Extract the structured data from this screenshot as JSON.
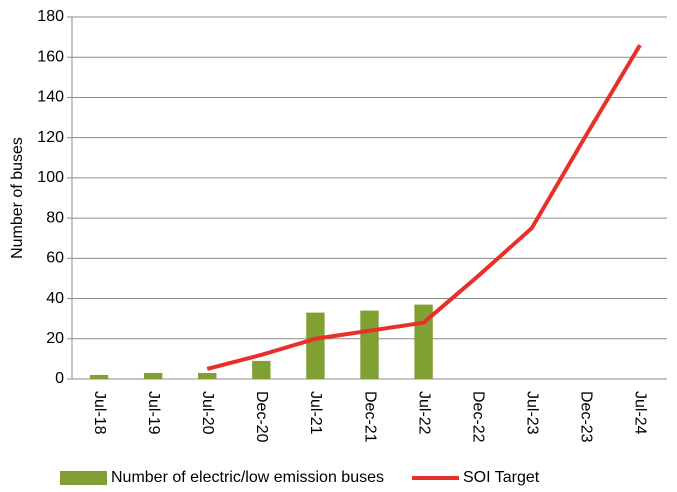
{
  "chart_data": {
    "type": "combo",
    "y_label": "Number of buses",
    "categories": [
      "Jul-18",
      "Jul-19",
      "Jul-20",
      "Dec-20",
      "Jul-21",
      "Dec-21",
      "Jul-22",
      "Dec-22",
      "Jul-23",
      "Dec-23",
      "Jul-24"
    ],
    "series": [
      {
        "name": "Number of electric/low emission buses",
        "type": "bar",
        "color": "#80a034",
        "values": [
          2,
          3,
          3,
          9,
          33,
          34,
          37,
          null,
          null,
          null,
          null
        ]
      },
      {
        "name": "SOI Target",
        "type": "line",
        "color": "#e8302a",
        "values": [
          null,
          null,
          5,
          12,
          20,
          24,
          28,
          51,
          75,
          121,
          166
        ]
      }
    ],
    "ylim": [
      0,
      180
    ],
    "yticks": [
      0,
      20,
      40,
      60,
      80,
      100,
      120,
      140,
      160,
      180
    ],
    "grid": true,
    "legend": "bottom"
  }
}
